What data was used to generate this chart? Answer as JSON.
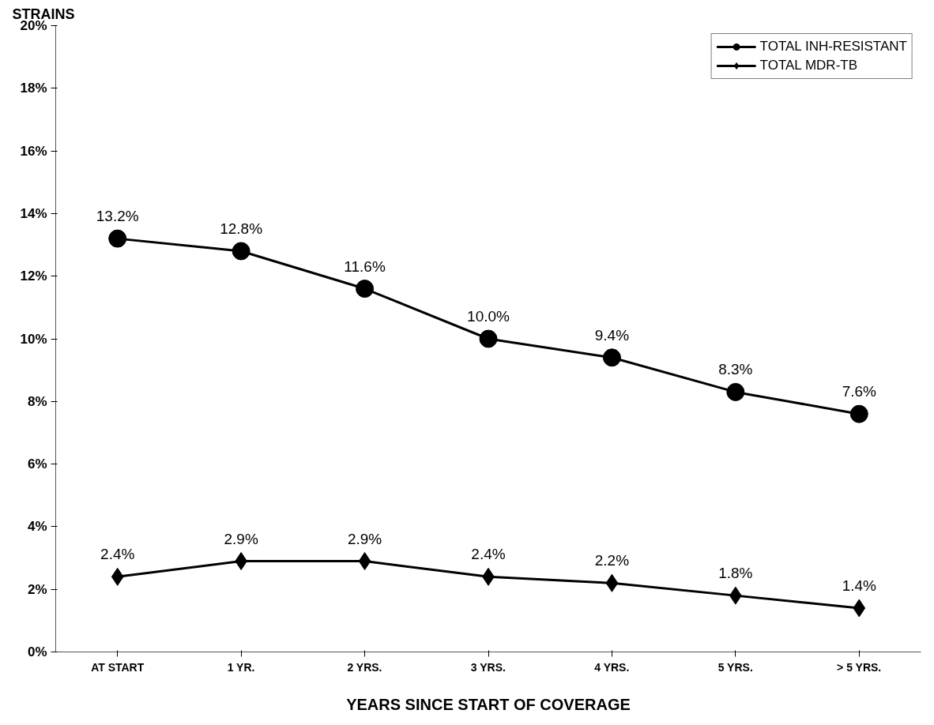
{
  "chart_data": {
    "type": "line",
    "title": "STRAINS",
    "xlabel": "YEARS SINCE START OF COVERAGE",
    "categories": [
      "AT START",
      "1 YR.",
      "2 YRS.",
      "3 YRS.",
      "4 YRS.",
      "5 YRS.",
      "> 5 YRS."
    ],
    "series": [
      {
        "name": "TOTAL INH-RESISTANT",
        "color": "#000000",
        "marker": "circle",
        "values": [
          13.2,
          12.8,
          11.6,
          10.0,
          9.4,
          8.3,
          7.6
        ],
        "value_labels": [
          "13.2%",
          "12.8%",
          "11.6%",
          "10.0%",
          "9.4%",
          "8.3%",
          "7.6%"
        ]
      },
      {
        "name": "TOTAL MDR-TB",
        "color": "#000000",
        "marker": "diamond",
        "values": [
          2.4,
          2.9,
          2.9,
          2.4,
          2.2,
          1.8,
          1.4
        ],
        "value_labels": [
          "2.4%",
          "2.9%",
          "2.9%",
          "2.4%",
          "2.2%",
          "1.8%",
          "1.4%"
        ]
      }
    ],
    "ylim": [
      0,
      20
    ],
    "yticks": [
      {
        "value": 0,
        "label": "0%"
      },
      {
        "value": 2,
        "label": "2%"
      },
      {
        "value": 4,
        "label": "4%"
      },
      {
        "value": 6,
        "label": "6%"
      },
      {
        "value": 8,
        "label": "8%"
      },
      {
        "value": 10,
        "label": "10%"
      },
      {
        "value": 12,
        "label": "12%"
      },
      {
        "value": 14,
        "label": "14%"
      },
      {
        "value": 16,
        "label": "16%"
      },
      {
        "value": 18,
        "label": "18%"
      },
      {
        "value": 20,
        "label": "20%"
      }
    ],
    "grid": false,
    "legend": "top right",
    "line_style": "solid"
  }
}
